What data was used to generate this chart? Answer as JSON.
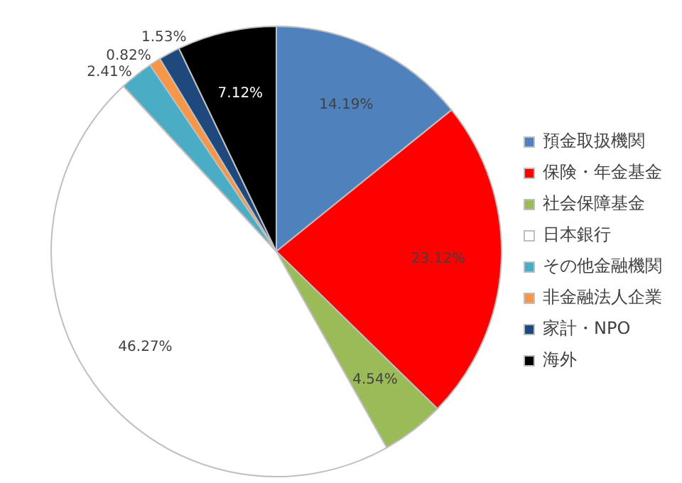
{
  "chart_data": {
    "type": "pie",
    "categories": [
      "預金取扱機関",
      "保険・年金基金",
      "社会保障基金",
      "日本銀行",
      "その他金融機関",
      "非金融法人企業",
      "家計・NPO",
      "海外"
    ],
    "values": [
      14.19,
      23.12,
      4.54,
      46.27,
      2.41,
      0.82,
      1.53,
      7.12
    ],
    "value_labels": [
      "14.19%",
      "23.12%",
      "4.54%",
      "46.27%",
      "2.41%",
      "0.82%",
      "1.53%",
      "7.12%"
    ],
    "colors": [
      "#4f81bd",
      "#ff0000",
      "#9bbb59",
      "#ffffff",
      "#4bacc6",
      "#f79646",
      "#1f497d",
      "#000000"
    ],
    "legend": "right"
  }
}
